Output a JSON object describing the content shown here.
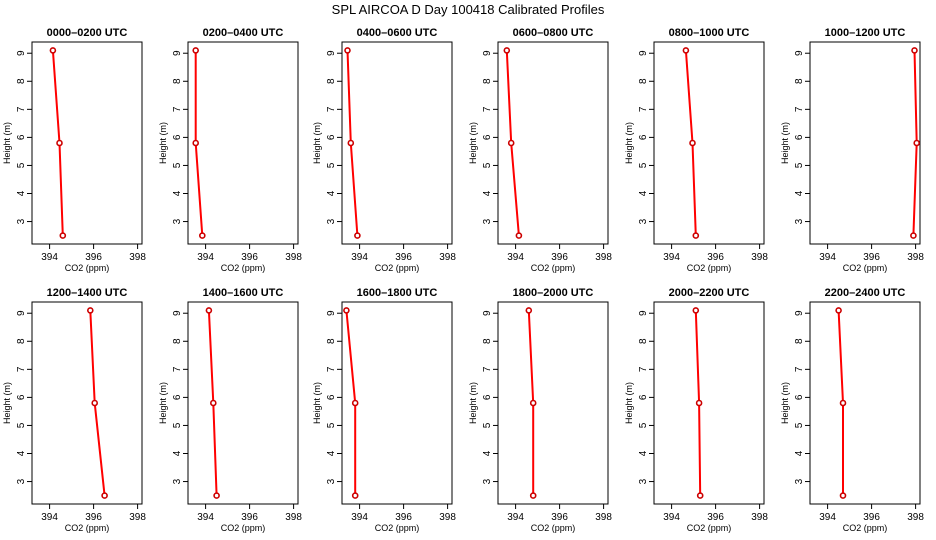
{
  "title": "SPL AIRCOA D  Day 100418  Calibrated Profiles",
  "line_color": "#ff0000",
  "marker_color": "#cc0000",
  "chart_data": [
    {
      "type": "line",
      "title": "0000–0200 UTC",
      "xlabel": "CO2 (ppm)",
      "ylabel": "Height (m)",
      "xlim": [
        393.2,
        398.2
      ],
      "ylim": [
        2.2,
        9.4
      ],
      "xticks": [
        394,
        396,
        398
      ],
      "yticks": [
        3,
        4,
        5,
        6,
        7,
        8,
        9
      ],
      "grid": false,
      "x": [
        394.15,
        394.45,
        394.6
      ],
      "y": [
        9.1,
        5.8,
        2.5
      ]
    },
    {
      "type": "line",
      "title": "0200–0400 UTC",
      "xlabel": "CO2 (ppm)",
      "ylabel": "Height (m)",
      "xlim": [
        393.2,
        398.2
      ],
      "ylim": [
        2.2,
        9.4
      ],
      "xticks": [
        394,
        396,
        398
      ],
      "yticks": [
        3,
        4,
        5,
        6,
        7,
        8,
        9
      ],
      "grid": false,
      "x": [
        393.55,
        393.55,
        393.85
      ],
      "y": [
        9.1,
        5.8,
        2.5
      ]
    },
    {
      "type": "line",
      "title": "0400–0600 UTC",
      "xlabel": "CO2 (ppm)",
      "ylabel": "Height (m)",
      "xlim": [
        393.2,
        398.2
      ],
      "ylim": [
        2.2,
        9.4
      ],
      "xticks": [
        394,
        396,
        398
      ],
      "yticks": [
        3,
        4,
        5,
        6,
        7,
        8,
        9
      ],
      "grid": false,
      "x": [
        393.45,
        393.6,
        393.9
      ],
      "y": [
        9.1,
        5.8,
        2.5
      ]
    },
    {
      "type": "line",
      "title": "0600–0800 UTC",
      "xlabel": "CO2 (ppm)",
      "ylabel": "Height (m)",
      "xlim": [
        393.2,
        398.2
      ],
      "ylim": [
        2.2,
        9.4
      ],
      "xticks": [
        394,
        396,
        398
      ],
      "yticks": [
        3,
        4,
        5,
        6,
        7,
        8,
        9
      ],
      "grid": false,
      "x": [
        393.6,
        393.8,
        394.15
      ],
      "y": [
        9.1,
        5.8,
        2.5
      ]
    },
    {
      "type": "line",
      "title": "0800–1000 UTC",
      "xlabel": "CO2 (ppm)",
      "ylabel": "Height (m)",
      "xlim": [
        393.2,
        398.2
      ],
      "ylim": [
        2.2,
        9.4
      ],
      "xticks": [
        394,
        396,
        398
      ],
      "yticks": [
        3,
        4,
        5,
        6,
        7,
        8,
        9
      ],
      "grid": false,
      "x": [
        394.65,
        394.95,
        395.1
      ],
      "y": [
        9.1,
        5.8,
        2.5
      ]
    },
    {
      "type": "line",
      "title": "1000–1200 UTC",
      "xlabel": "CO2 (ppm)",
      "ylabel": "Height (m)",
      "xlim": [
        393.2,
        398.2
      ],
      "ylim": [
        2.2,
        9.4
      ],
      "xticks": [
        394,
        396,
        398
      ],
      "yticks": [
        3,
        4,
        5,
        6,
        7,
        8,
        9
      ],
      "grid": false,
      "x": [
        397.95,
        398.05,
        397.9
      ],
      "y": [
        9.1,
        5.8,
        2.5
      ]
    },
    {
      "type": "line",
      "title": "1200–1400 UTC",
      "xlabel": "CO2 (ppm)",
      "ylabel": "Height (m)",
      "xlim": [
        393.2,
        398.2
      ],
      "ylim": [
        2.2,
        9.4
      ],
      "xticks": [
        394,
        396,
        398
      ],
      "yticks": [
        3,
        4,
        5,
        6,
        7,
        8,
        9
      ],
      "grid": false,
      "x": [
        395.85,
        396.05,
        396.5
      ],
      "y": [
        9.1,
        5.8,
        2.5
      ]
    },
    {
      "type": "line",
      "title": "1400–1600 UTC",
      "xlabel": "CO2 (ppm)",
      "ylabel": "Height (m)",
      "xlim": [
        393.2,
        398.2
      ],
      "ylim": [
        2.2,
        9.4
      ],
      "xticks": [
        394,
        396,
        398
      ],
      "yticks": [
        3,
        4,
        5,
        6,
        7,
        8,
        9
      ],
      "grid": false,
      "x": [
        394.15,
        394.35,
        394.5
      ],
      "y": [
        9.1,
        5.8,
        2.5
      ]
    },
    {
      "type": "line",
      "title": "1600–1800 UTC",
      "xlabel": "CO2 (ppm)",
      "ylabel": "Height (m)",
      "xlim": [
        393.2,
        398.2
      ],
      "ylim": [
        2.2,
        9.4
      ],
      "xticks": [
        394,
        396,
        398
      ],
      "yticks": [
        3,
        4,
        5,
        6,
        7,
        8,
        9
      ],
      "grid": false,
      "x": [
        393.4,
        393.8,
        393.8
      ],
      "y": [
        9.1,
        5.8,
        2.5
      ]
    },
    {
      "type": "line",
      "title": "1800–2000 UTC",
      "xlabel": "CO2 (ppm)",
      "ylabel": "Height (m)",
      "xlim": [
        393.2,
        398.2
      ],
      "ylim": [
        2.2,
        9.4
      ],
      "xticks": [
        394,
        396,
        398
      ],
      "yticks": [
        3,
        4,
        5,
        6,
        7,
        8,
        9
      ],
      "grid": false,
      "x": [
        394.6,
        394.8,
        394.8
      ],
      "y": [
        9.1,
        5.8,
        2.5
      ]
    },
    {
      "type": "line",
      "title": "2000–2200 UTC",
      "xlabel": "CO2 (ppm)",
      "ylabel": "Height (m)",
      "xlim": [
        393.2,
        398.2
      ],
      "ylim": [
        2.2,
        9.4
      ],
      "xticks": [
        394,
        396,
        398
      ],
      "yticks": [
        3,
        4,
        5,
        6,
        7,
        8,
        9
      ],
      "grid": false,
      "x": [
        395.1,
        395.25,
        395.3
      ],
      "y": [
        9.1,
        5.8,
        2.5
      ]
    },
    {
      "type": "line",
      "title": "2200–2400 UTC",
      "xlabel": "CO2 (ppm)",
      "ylabel": "Height (m)",
      "xlim": [
        393.2,
        398.2
      ],
      "ylim": [
        2.2,
        9.4
      ],
      "xticks": [
        394,
        396,
        398
      ],
      "yticks": [
        3,
        4,
        5,
        6,
        7,
        8,
        9
      ],
      "grid": false,
      "x": [
        394.5,
        394.7,
        394.7
      ],
      "y": [
        9.1,
        5.8,
        2.5
      ]
    }
  ]
}
